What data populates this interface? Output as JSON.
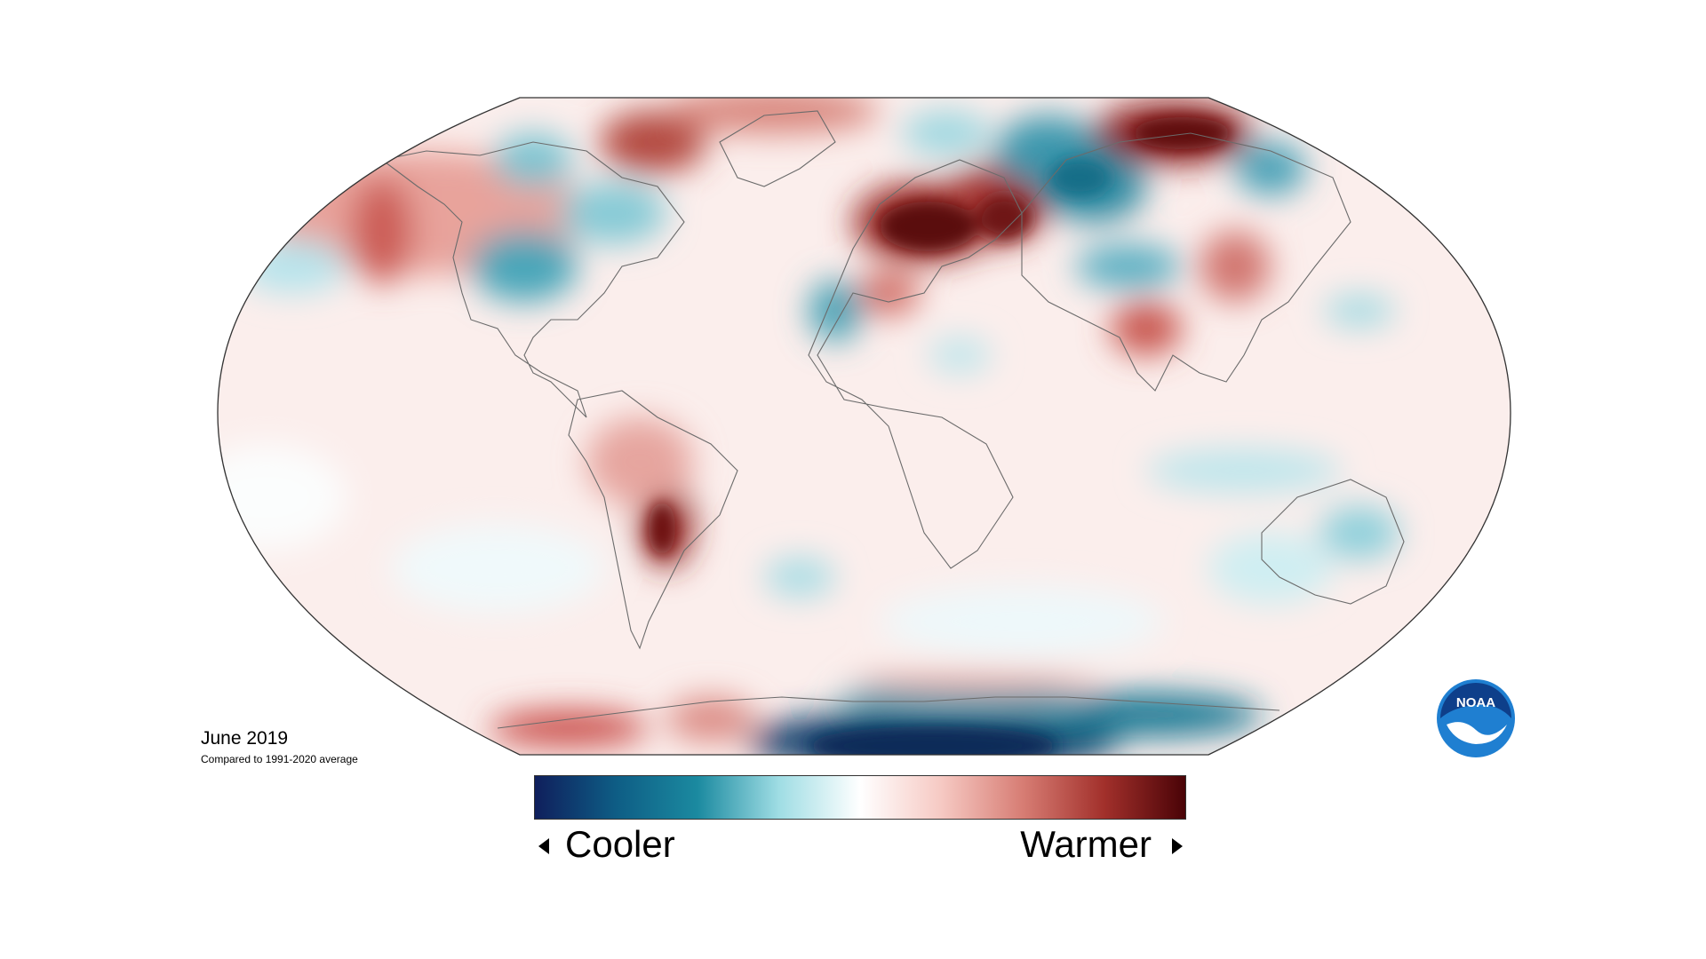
{
  "caption": {
    "title": "June 2019",
    "subtitle": "Compared to 1991-2020 average"
  },
  "legend": {
    "cooler_label": "Cooler",
    "warmer_label": "Warmer",
    "colors": [
      "#0f1f5c",
      "#0e5d85",
      "#1b8aa0",
      "#9fdde4",
      "#ffffff",
      "#f6c9c3",
      "#d77d74",
      "#a2302b",
      "#4a0307"
    ]
  },
  "logo": {
    "text": "NOAA",
    "icon": "noaa-logo",
    "colors": {
      "outer": "#1f7fd1",
      "inner": "#0e3f8a",
      "bird": "#ffffff"
    }
  },
  "map": {
    "projection": "robinson",
    "background": "#ffffff",
    "outline": "#333333",
    "land_outline": "#6b6b6b"
  }
}
